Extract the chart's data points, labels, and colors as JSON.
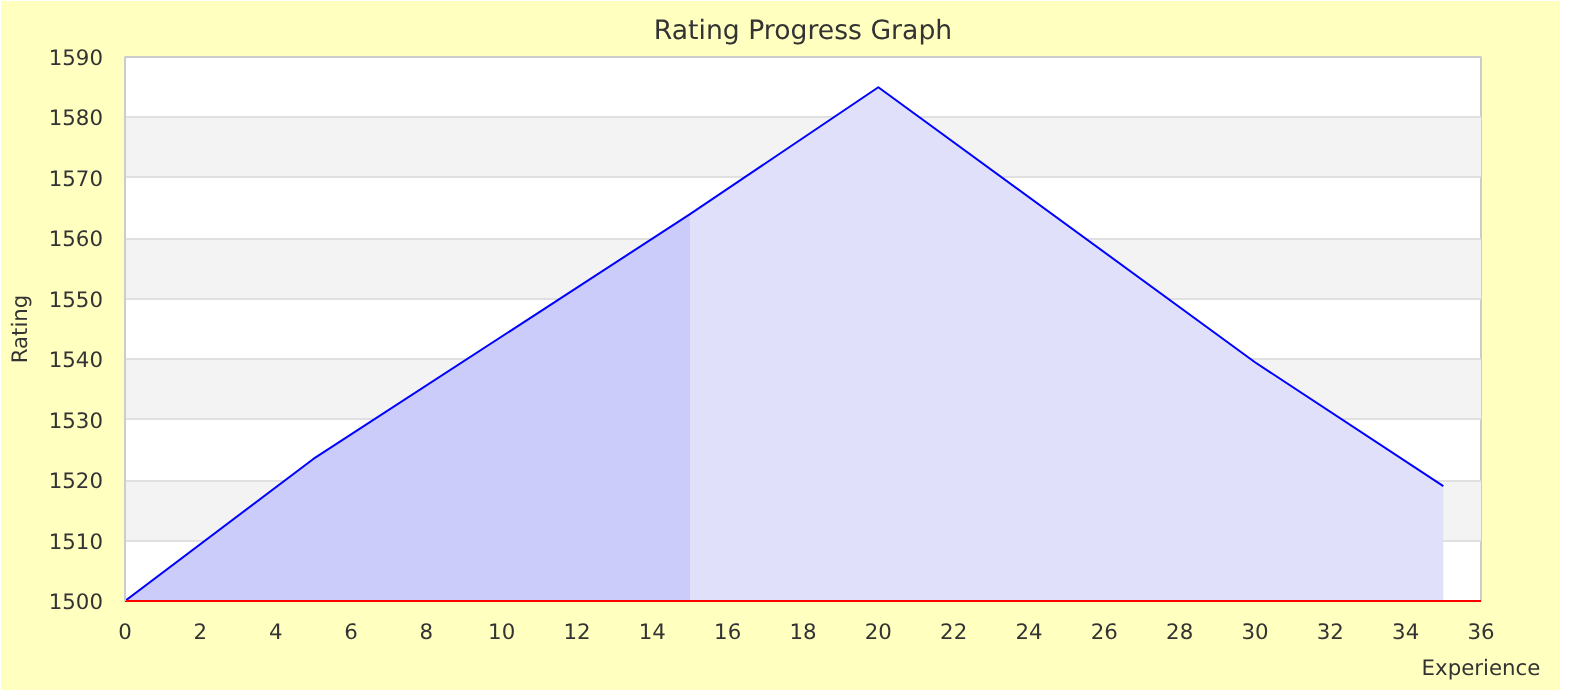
{
  "chart_data": {
    "type": "area",
    "title": "Rating Progress Graph",
    "xlabel": "Experience",
    "ylabel": "Rating",
    "xlim": [
      0,
      36
    ],
    "xticks": [
      0,
      2,
      4,
      6,
      8,
      10,
      12,
      14,
      16,
      18,
      20,
      22,
      24,
      26,
      28,
      30,
      32,
      34,
      36
    ],
    "ylim": [
      1500,
      1590
    ],
    "yticks": [
      1500,
      1510,
      1520,
      1530,
      1540,
      1550,
      1560,
      1570,
      1580,
      1590
    ],
    "grid": "y",
    "series": [
      {
        "color": "#ccccfa",
        "x": [
          0,
          5,
          15
        ],
        "values": [
          1500,
          1523.5,
          1564
        ]
      },
      {
        "color": "#e0e0fa",
        "x": [
          15,
          20,
          30,
          35
        ],
        "values": [
          1564,
          1585,
          1539.5,
          1519
        ]
      },
      {
        "type": "line",
        "color": "#0000ff",
        "x": [
          0,
          5,
          15,
          20,
          30,
          35
        ],
        "values": [
          1500,
          1523.5,
          1564,
          1585,
          1539.5,
          1519
        ]
      }
    ]
  }
}
